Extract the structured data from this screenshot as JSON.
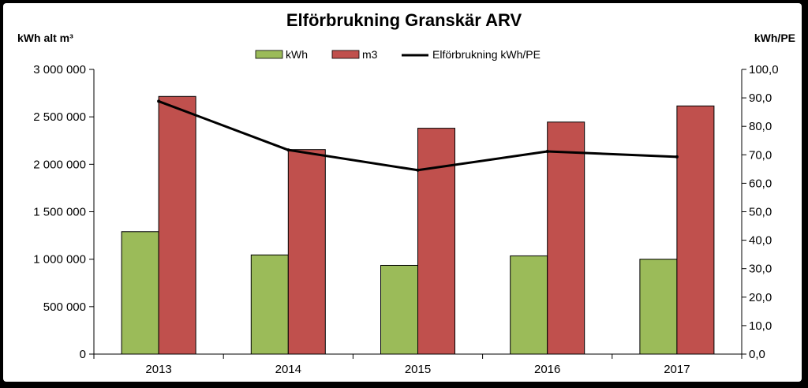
{
  "chart_data": {
    "type": "bar",
    "title": "Elförbrukning Granskär ARV",
    "ylabel_left": "kWh alt m³",
    "ylabel_right": "kWh/PE",
    "categories": [
      "2013",
      "2014",
      "2015",
      "2016",
      "2017"
    ],
    "series": [
      {
        "name": "kWh",
        "type": "bar",
        "axis": "left",
        "color": "#9BBB59",
        "values": [
          1290000,
          1045000,
          935000,
          1035000,
          1000000
        ]
      },
      {
        "name": "m3",
        "type": "bar",
        "axis": "left",
        "color": "#C0504D",
        "values": [
          2715000,
          2155000,
          2380000,
          2445000,
          2615000
        ]
      },
      {
        "name": "Elförbrukning kWh/PE",
        "type": "line",
        "axis": "right",
        "color": "#000000",
        "values": [
          88.8,
          71.7,
          64.6,
          71.2,
          69.3
        ]
      }
    ],
    "ylim_left": [
      0,
      3000000
    ],
    "ylim_right": [
      0,
      100
    ],
    "left_ticks": [
      {
        "value": 0,
        "label": "0"
      },
      {
        "value": 500000,
        "label": "500 000"
      },
      {
        "value": 1000000,
        "label": "1 000 000"
      },
      {
        "value": 1500000,
        "label": "1 500 000"
      },
      {
        "value": 2000000,
        "label": "2 000 000"
      },
      {
        "value": 2500000,
        "label": "2 500 000"
      },
      {
        "value": 3000000,
        "label": "3 000 000"
      }
    ],
    "right_ticks": [
      {
        "value": 0,
        "label": "0,0"
      },
      {
        "value": 10,
        "label": "10,0"
      },
      {
        "value": 20,
        "label": "20,0"
      },
      {
        "value": 30,
        "label": "30,0"
      },
      {
        "value": 40,
        "label": "40,0"
      },
      {
        "value": 50,
        "label": "50,0"
      },
      {
        "value": 60,
        "label": "60,0"
      },
      {
        "value": 70,
        "label": "70,0"
      },
      {
        "value": 80,
        "label": "80,0"
      },
      {
        "value": 90,
        "label": "90,0"
      },
      {
        "value": 100,
        "label": "100,0"
      }
    ],
    "legend_position": "top-center",
    "grid": false
  }
}
